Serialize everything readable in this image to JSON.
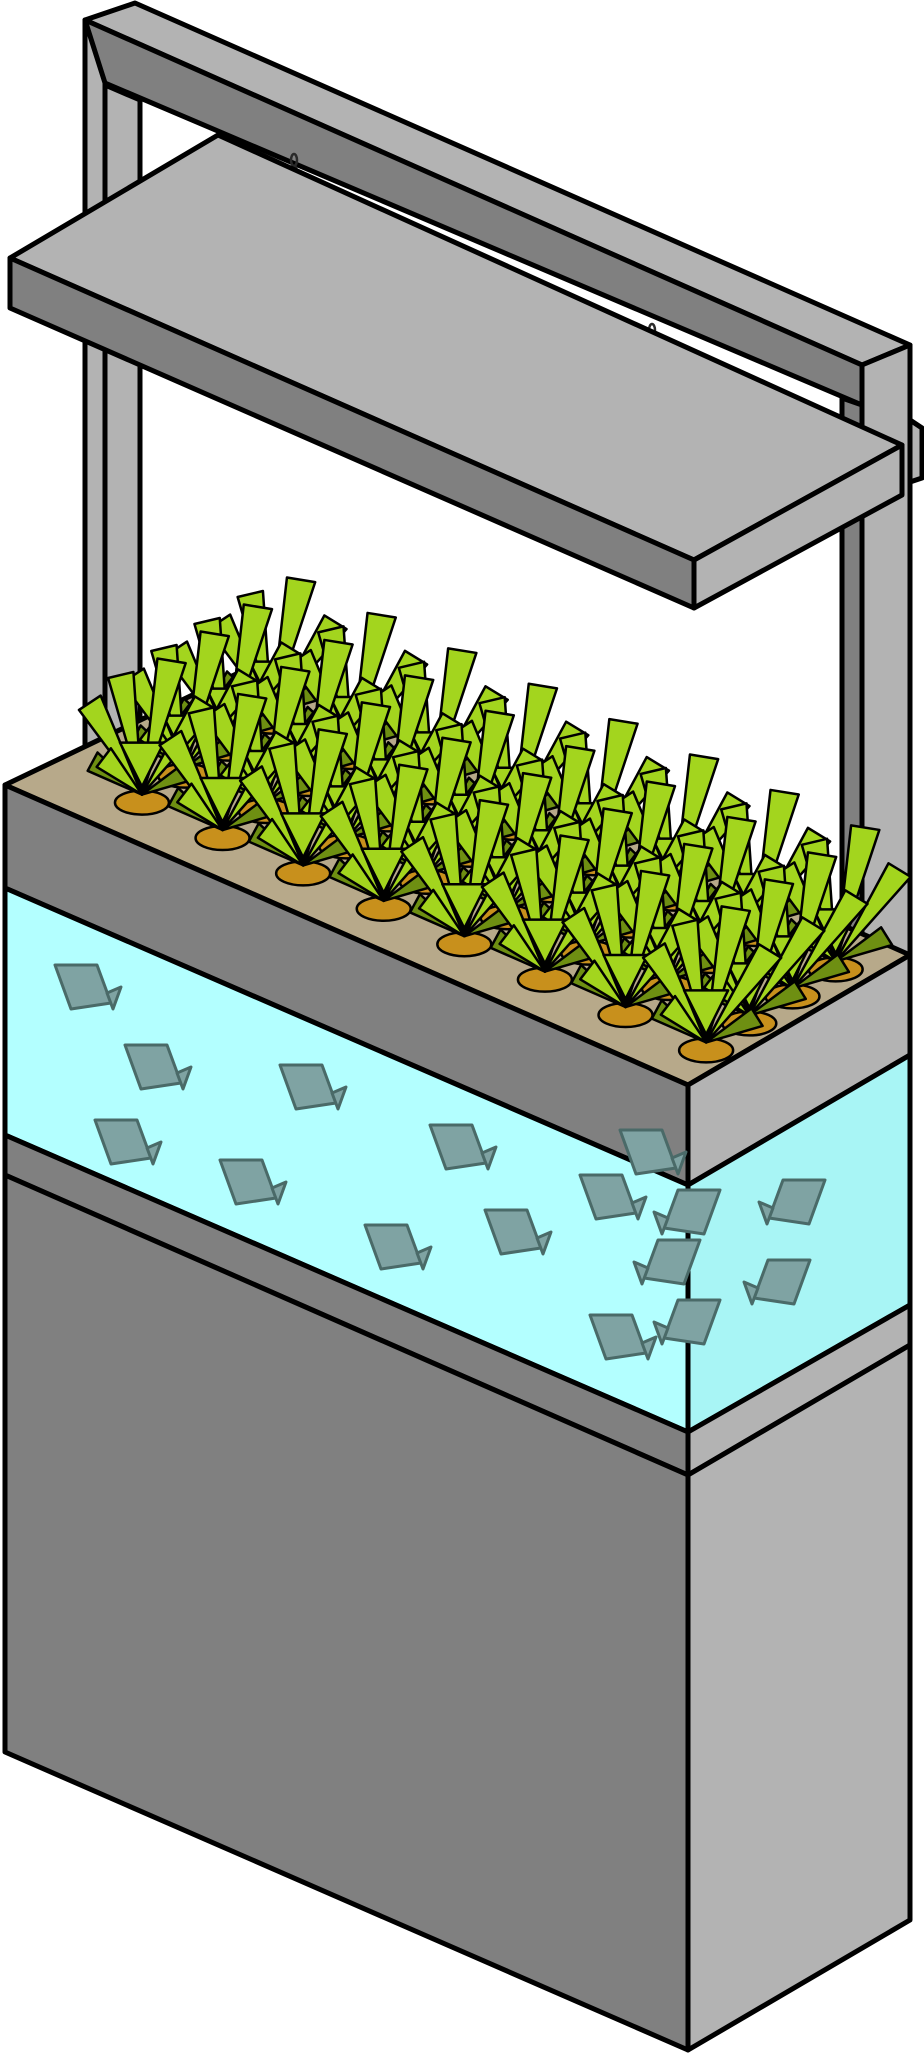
{
  "colors": {
    "background": "#ffffff",
    "frame_light": "#b3b3b3",
    "frame_dark": "#808080",
    "cabinet_front": "#808080",
    "cabinet_side": "#b3b3b3",
    "water": "#b3ffff",
    "water_side": "#a8f5f5",
    "fish": "#7fa3a3",
    "tray_top": "#b7a98a",
    "leaf_light": "#a3d51e",
    "leaf_dark": "#6e8f12",
    "net_pot": "#c8901c",
    "chain": "#2a2a2a",
    "outline": "#000000"
  },
  "scene": {
    "subject": "hydroponic-aquaponic-grow-system",
    "plant_rows": 4,
    "plants_per_row": 8,
    "fish_count": 16,
    "chains": 2
  }
}
